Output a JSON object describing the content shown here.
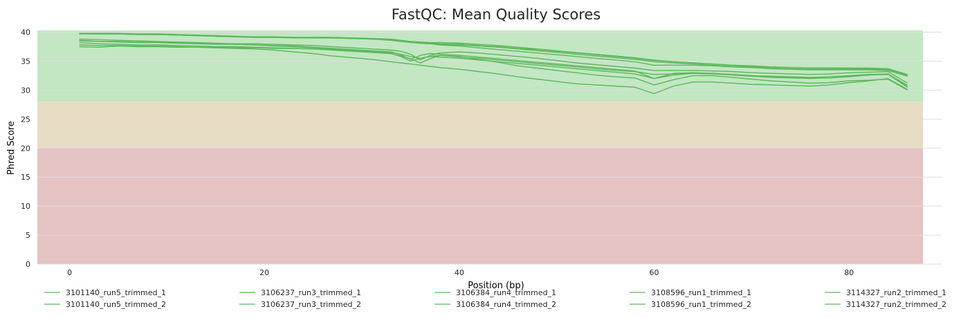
{
  "chart_data": {
    "type": "line",
    "title": "FastQC: Mean Quality Scores",
    "xlabel": "Position (bp)",
    "ylabel": "Phred Score",
    "xlim": [
      -3.3,
      89.5
    ],
    "ylim": [
      0,
      40.3
    ],
    "xticks": [
      0,
      20,
      40,
      60,
      80
    ],
    "yticks": [
      0,
      5,
      10,
      15,
      20,
      25,
      30,
      35,
      40
    ],
    "grid": true,
    "legend_position": "bottom",
    "line_color": "#5cb85c",
    "quality_bands": [
      {
        "from": 28,
        "to": 40.3,
        "color": "#c3e6c3"
      },
      {
        "from": 20,
        "to": 28,
        "color": "#e6dcc3"
      },
      {
        "from": 0,
        "to": 20,
        "color": "#e6c3c3"
      }
    ],
    "x": [
      1,
      3,
      5,
      7,
      9,
      11,
      13,
      15,
      17,
      19,
      21,
      23,
      25,
      27,
      29,
      31,
      33,
      34,
      35,
      36,
      37,
      38,
      40,
      42,
      44,
      46,
      48,
      50,
      52,
      54,
      56,
      58,
      60,
      62,
      64,
      66,
      68,
      70,
      72,
      74,
      76,
      78,
      80,
      82,
      84,
      86
    ],
    "series": [
      {
        "name": "3101140_run5_trimmed_1",
        "values": [
          39.8,
          39.8,
          39.8,
          39.7,
          39.7,
          39.6,
          39.5,
          39.4,
          39.3,
          39.2,
          39.2,
          39.1,
          39.1,
          39.1,
          39.0,
          38.9,
          38.8,
          38.6,
          38.4,
          38.3,
          38.2,
          38.2,
          38.1,
          37.9,
          37.7,
          37.4,
          37.1,
          36.8,
          36.5,
          36.2,
          35.9,
          35.6,
          35.2,
          34.9,
          34.7,
          34.5,
          34.3,
          34.2,
          34.0,
          33.9,
          33.8,
          33.8,
          33.8,
          33.7,
          33.7,
          32.6
        ]
      },
      {
        "name": "3101140_run5_trimmed_2",
        "values": [
          38.6,
          38.4,
          38.3,
          38.2,
          38.2,
          38.1,
          38.0,
          37.9,
          37.9,
          37.8,
          37.7,
          37.6,
          37.4,
          37.2,
          37.0,
          36.8,
          36.6,
          36.1,
          35.3,
          36.0,
          36.3,
          36.2,
          36.0,
          35.7,
          35.4,
          35.1,
          34.8,
          34.5,
          34.2,
          33.9,
          33.6,
          33.3,
          32.0,
          32.9,
          33.0,
          32.9,
          32.7,
          32.5,
          32.3,
          32.2,
          32.1,
          32.1,
          32.3,
          32.6,
          32.8,
          30.8
        ]
      },
      {
        "name": "3106237_run3_trimmed_1",
        "values": [
          39.7,
          39.7,
          39.7,
          39.6,
          39.6,
          39.5,
          39.4,
          39.3,
          39.2,
          39.1,
          39.1,
          39.0,
          39.0,
          39.0,
          38.9,
          38.8,
          38.6,
          38.4,
          38.2,
          38.1,
          38.0,
          37.9,
          37.8,
          37.6,
          37.4,
          37.1,
          36.8,
          36.5,
          36.2,
          35.9,
          35.6,
          35.3,
          34.9,
          34.7,
          34.5,
          34.3,
          34.1,
          34.0,
          33.8,
          33.7,
          33.6,
          33.6,
          33.6,
          33.6,
          33.5,
          32.5
        ]
      },
      {
        "name": "3106237_run3_trimmed_2",
        "values": [
          37.8,
          37.7,
          37.7,
          37.6,
          37.6,
          37.5,
          37.4,
          37.3,
          37.2,
          37.1,
          36.9,
          36.6,
          36.3,
          35.9,
          35.6,
          35.3,
          34.9,
          34.7,
          34.5,
          34.3,
          34.1,
          33.9,
          33.6,
          33.2,
          32.8,
          32.3,
          31.9,
          31.5,
          31.1,
          30.9,
          30.7,
          30.5,
          29.4,
          30.7,
          31.4,
          31.4,
          31.2,
          31.0,
          30.9,
          30.8,
          30.7,
          30.9,
          31.3,
          31.6,
          32.0,
          30.1
        ]
      },
      {
        "name": "3106384_run4_trimmed_1",
        "values": [
          38.8,
          38.7,
          38.6,
          38.5,
          38.4,
          38.3,
          38.2,
          38.1,
          38.0,
          38.0,
          37.9,
          37.8,
          37.7,
          37.5,
          37.3,
          37.1,
          36.9,
          36.7,
          36.2,
          35.2,
          36.0,
          36.4,
          36.6,
          36.4,
          36.1,
          35.8,
          35.5,
          35.1,
          34.7,
          34.4,
          34.1,
          33.8,
          33.4,
          33.4,
          33.4,
          33.3,
          33.2,
          33.0,
          32.9,
          32.8,
          32.7,
          32.8,
          33.0,
          33.1,
          33.2,
          31.2
        ]
      },
      {
        "name": "3106384_run4_trimmed_2",
        "values": [
          37.5,
          37.4,
          37.6,
          37.5,
          37.5,
          37.4,
          37.4,
          37.4,
          37.3,
          37.3,
          37.2,
          37.2,
          37.1,
          37.0,
          36.8,
          36.6,
          36.3,
          35.9,
          35.4,
          34.7,
          35.4,
          36.0,
          35.8,
          35.3,
          34.8,
          34.2,
          33.8,
          33.4,
          33.0,
          32.6,
          32.3,
          32.1,
          30.9,
          31.8,
          32.5,
          32.5,
          32.2,
          31.9,
          31.6,
          31.4,
          31.2,
          31.3,
          31.6,
          31.7,
          31.9,
          30.0
        ]
      },
      {
        "name": "3108596_run1_trimmed_1",
        "values": [
          39.8,
          39.7,
          39.7,
          39.6,
          39.6,
          39.5,
          39.4,
          39.3,
          39.2,
          39.2,
          39.1,
          39.1,
          39.1,
          39.1,
          39.0,
          38.9,
          38.7,
          38.5,
          38.3,
          38.2,
          38.1,
          38.0,
          37.9,
          37.7,
          37.5,
          37.2,
          37.0,
          36.7,
          36.4,
          36.1,
          35.8,
          35.5,
          35.1,
          34.9,
          34.7,
          34.5,
          34.3,
          34.1,
          34.0,
          33.9,
          33.8,
          33.8,
          33.8,
          33.8,
          33.7,
          32.7
        ]
      },
      {
        "name": "3108596_run1_trimmed_2",
        "values": [
          38.5,
          38.4,
          38.4,
          38.3,
          38.3,
          38.2,
          38.1,
          38.0,
          37.9,
          37.8,
          37.6,
          37.5,
          37.3,
          37.1,
          36.9,
          36.7,
          36.5,
          36.2,
          35.8,
          35.5,
          35.8,
          36.0,
          35.7,
          35.5,
          35.2,
          34.9,
          34.6,
          34.3,
          34.0,
          33.7,
          33.4,
          33.2,
          32.7,
          32.8,
          32.9,
          32.8,
          32.7,
          32.5,
          32.4,
          32.3,
          32.2,
          32.3,
          32.5,
          32.7,
          32.8,
          30.6
        ]
      },
      {
        "name": "3114327_run2_trimmed_1",
        "values": [
          39.7,
          39.7,
          39.7,
          39.6,
          39.6,
          39.5,
          39.4,
          39.3,
          39.2,
          39.1,
          39.1,
          39.1,
          39.0,
          39.0,
          38.9,
          38.8,
          38.7,
          38.5,
          38.3,
          38.1,
          38.0,
          37.8,
          37.6,
          37.3,
          37.0,
          36.7,
          36.4,
          36.1,
          35.8,
          35.5,
          35.2,
          34.9,
          34.3,
          34.3,
          34.3,
          34.2,
          34.0,
          33.9,
          33.7,
          33.6,
          33.5,
          33.5,
          33.5,
          33.5,
          33.4,
          32.4
        ]
      },
      {
        "name": "3114327_run2_trimmed_2",
        "values": [
          38.2,
          38.0,
          37.9,
          37.8,
          37.8,
          37.7,
          37.6,
          37.5,
          37.5,
          37.4,
          37.3,
          37.2,
          37.1,
          36.9,
          36.7,
          36.5,
          36.3,
          35.8,
          35.0,
          35.5,
          35.8,
          35.7,
          35.5,
          35.2,
          34.9,
          34.6,
          34.3,
          34.0,
          33.7,
          33.4,
          33.1,
          32.8,
          32.0,
          32.6,
          32.9,
          32.8,
          32.6,
          32.4,
          32.2,
          32.1,
          32.0,
          32.1,
          32.4,
          32.6,
          32.7,
          30.5
        ]
      }
    ]
  }
}
